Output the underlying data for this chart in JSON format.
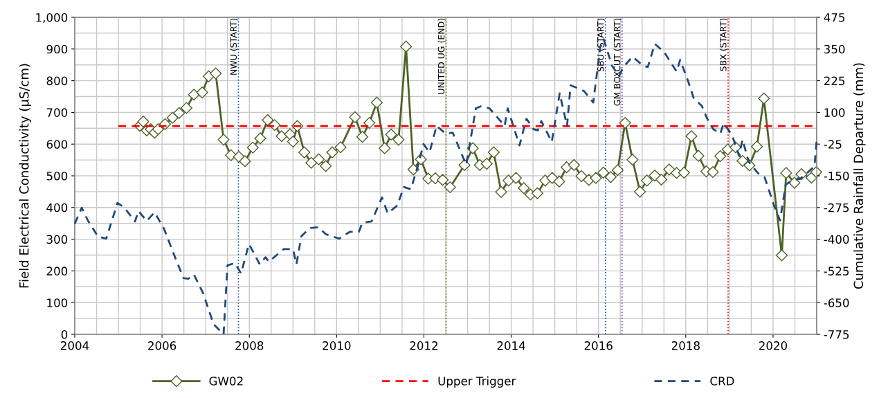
{
  "chart_data": {
    "type": "line",
    "xlabel": null,
    "ylabel": "Field Electrical Conductivity (µS/cm)",
    "y2label": "Cumulative Rainfall Departure (mm)",
    "xlim": [
      2004,
      2021
    ],
    "xticks": [
      2004,
      2006,
      2008,
      2010,
      2012,
      2014,
      2016,
      2018,
      2020
    ],
    "ylim": [
      0,
      1000
    ],
    "yticks": [
      0,
      100,
      200,
      300,
      400,
      500,
      600,
      700,
      800,
      900,
      {
        "value": 1000,
        "label": "1,000"
      }
    ],
    "y2lim": [
      -775,
      475
    ],
    "y2ticks": [
      -775,
      -650,
      -525,
      -400,
      -275,
      -150,
      -25,
      100,
      225,
      350,
      475
    ],
    "grid": true,
    "legend": "bottom",
    "series": [
      {
        "name": "GW02",
        "color": "#4f6228",
        "marker": "diamond",
        "line_style": "solid",
        "x": [
          2005.49,
          2005.57,
          2005.65,
          2005.74,
          2005.83,
          2005.91,
          2006.07,
          2006.24,
          2006.39,
          2006.56,
          2006.73,
          2006.92,
          2007.07,
          2007.23,
          2007.41,
          2007.58,
          2007.76,
          2007.9,
          2008.08,
          2008.25,
          2008.42,
          2008.58,
          2008.74,
          2008.93,
          2009.0,
          2009.1,
          2009.26,
          2009.42,
          2009.59,
          2009.75,
          2009.9,
          2010.09,
          2010.42,
          2010.59,
          2010.75,
          2010.92,
          2011.1,
          2011.25,
          2011.42,
          2011.59,
          2011.76,
          2011.93,
          2012.1,
          2012.26,
          2012.43,
          2012.6,
          2012.93,
          2013.12,
          2013.28,
          2013.44,
          2013.6,
          2013.77,
          2013.94,
          2014.11,
          2014.29,
          2014.44,
          2014.6,
          2014.78,
          2014.94,
          2015.1,
          2015.27,
          2015.44,
          2015.61,
          2015.78,
          2015.94,
          2016.11,
          2016.28,
          2016.44,
          2016.61,
          2016.78,
          2016.95,
          2017.11,
          2017.29,
          2017.44,
          2017.62,
          2017.79,
          2017.96,
          2018.13,
          2018.29,
          2018.47,
          2018.62,
          2018.79,
          2018.96,
          2019.14,
          2019.3,
          2019.46,
          2019.63,
          2019.79,
          2020.2,
          2020.3,
          2020.49,
          2020.65,
          2020.88,
          2020.99
        ],
        "values": [
          658,
          671,
          643,
          647,
          636,
          647,
          663,
          683,
          698,
          714,
          756,
          763,
          814,
          823,
          614,
          565,
          560,
          546,
          589,
          618,
          676,
          660,
          625,
          631,
          608,
          657,
          574,
          541,
          552,
          531,
          574,
          590,
          685,
          623,
          667,
          731,
          587,
          630,
          614,
          908,
          520,
          552,
          491,
          492,
          487,
          464,
          534,
          587,
          534,
          538,
          574,
          449,
          485,
          493,
          461,
          441,
          445,
          485,
          493,
          482,
          527,
          534,
          499,
          487,
          493,
          510,
          496,
          518,
          667,
          551,
          450,
          485,
          501,
          488,
          520,
          509,
          510,
          625,
          563,
          514,
          512,
          562,
          583,
          590,
          547,
          533,
          592,
          744,
          249,
          509,
          478,
          505,
          494,
          512
        ]
      },
      {
        "name": "Upper Trigger",
        "color": "#ff0000",
        "marker": "none",
        "line_style": "dashed",
        "x": [
          2005.0,
          2021.0
        ],
        "values": [
          657,
          657
        ]
      },
      {
        "name": "CRD",
        "color": "#1f497d",
        "marker": "none",
        "line_style": "dashed",
        "axis": "y2",
        "x": [
          2004.0,
          2004.16,
          2004.3,
          2004.53,
          2004.72,
          2004.98,
          2005.14,
          2005.38,
          2005.46,
          2005.65,
          2005.83,
          2006.04,
          2006.31,
          2006.49,
          2006.6,
          2006.73,
          2006.94,
          2007.18,
          2007.41,
          2007.5,
          2007.67,
          2007.81,
          2007.99,
          2008.24,
          2008.37,
          2008.45,
          2008.63,
          2008.79,
          2009.0,
          2009.08,
          2009.19,
          2009.38,
          2009.59,
          2009.75,
          2010.06,
          2010.3,
          2010.51,
          2010.59,
          2010.8,
          2011.04,
          2011.17,
          2011.39,
          2011.54,
          2011.7,
          2011.86,
          2011.99,
          2012.13,
          2012.29,
          2012.5,
          2012.66,
          2012.97,
          2013.19,
          2013.32,
          2013.5,
          2013.71,
          2013.85,
          2013.92,
          2014.19,
          2014.35,
          2014.51,
          2014.61,
          2014.69,
          2014.93,
          2015.11,
          2015.2,
          2015.28,
          2015.36,
          2015.49,
          2015.67,
          2015.88,
          2016.04,
          2016.12,
          2016.31,
          2016.47,
          2016.57,
          2016.78,
          2017.02,
          2017.13,
          2017.29,
          2017.5,
          2017.79,
          2017.87,
          2018.05,
          2018.18,
          2018.37,
          2018.48,
          2018.63,
          2018.79,
          2018.87,
          2019.06,
          2019.22,
          2019.3,
          2019.44,
          2019.65,
          2019.81,
          2020.02,
          2020.16,
          2020.29,
          2020.45,
          2020.62,
          2020.78,
          2020.95,
          2021.0
        ],
        "values": [
          -339,
          -276,
          -326,
          -389,
          -398,
          -257,
          -276,
          -330,
          -289,
          -328,
          -294,
          -357,
          -476,
          -553,
          -556,
          -539,
          -612,
          -735,
          -775,
          -503,
          -494,
          -535,
          -419,
          -499,
          -471,
          -489,
          -462,
          -439,
          -439,
          -499,
          -389,
          -356,
          -353,
          -380,
          -398,
          -371,
          -371,
          -335,
          -330,
          -235,
          -298,
          -267,
          -194,
          -203,
          -112,
          -25,
          -57,
          47,
          16,
          20,
          -107,
          116,
          125,
          116,
          75,
          47,
          116,
          -30,
          75,
          34,
          29,
          66,
          -16,
          175,
          107,
          47,
          207,
          198,
          184,
          139,
          357,
          388,
          284,
          243,
          279,
          320,
          284,
          279,
          370,
          339,
          261,
          307,
          225,
          157,
          125,
          79,
          34,
          16,
          57,
          11,
          -71,
          -7,
          -94,
          -139,
          -157,
          -267,
          -326,
          -185,
          -166,
          -162,
          -139,
          -112,
          -7
        ]
      }
    ],
    "ref_lines": [
      {
        "axis": "x",
        "value": 2007.75,
        "label": "NWU (START)",
        "color": "#1f4e99",
        "line_style": "dotted"
      },
      {
        "axis": "x",
        "value": 2012.51,
        "label": "UNITED UG (END)",
        "color": "#6b7a2a",
        "line_style": "dotted"
      },
      {
        "axis": "x",
        "value": 2016.16,
        "label": "SBU (START)",
        "color": "#1f4e99",
        "line_style": "dotted"
      },
      {
        "axis": "x",
        "value": 2016.54,
        "label": "GM BOXCUT (START)",
        "color": "#7030a0",
        "line_style": "dotted"
      },
      {
        "axis": "x",
        "value": 2018.97,
        "label": "SBX (START)",
        "color": "#e00000",
        "line_style": "dotted"
      }
    ]
  }
}
